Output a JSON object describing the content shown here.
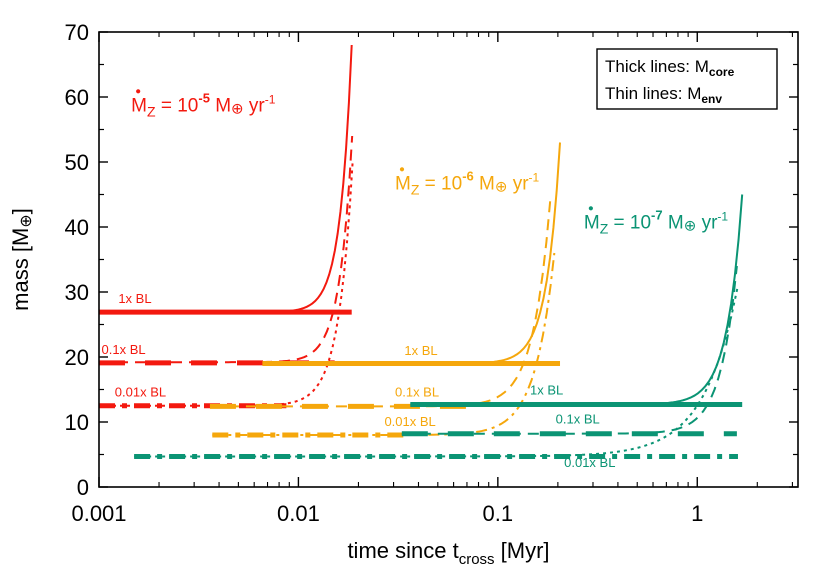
{
  "chart_data": {
    "type": "line",
    "xscale": "log",
    "xlim": [
      0.001,
      3.2
    ],
    "ylim": [
      0,
      70
    ],
    "xlabel": {
      "main": "time since t",
      "sub": "cross",
      "unit": " [Myr]"
    },
    "ylabel": {
      "main": "mass  [M",
      "sym": "⊕",
      "end": "]"
    },
    "xticks": [
      {
        "value": 0.001,
        "label": "0.001"
      },
      {
        "value": 0.01,
        "label": "0.01"
      },
      {
        "value": 0.1,
        "label": "0.1"
      },
      {
        "value": 1,
        "label": "1"
      }
    ],
    "yticks": [
      {
        "value": 0,
        "label": "0"
      },
      {
        "value": 10,
        "label": "10"
      },
      {
        "value": 20,
        "label": "20"
      },
      {
        "value": 30,
        "label": "30"
      },
      {
        "value": 40,
        "label": "40"
      },
      {
        "value": 50,
        "label": "50"
      },
      {
        "value": 60,
        "label": "60"
      },
      {
        "value": 70,
        "label": "70"
      }
    ],
    "legend": {
      "position": "top-right",
      "line1": {
        "text": "Thick lines: M",
        "sub": "core"
      },
      "line2": {
        "text": "Thin lines: M",
        "sub": "env"
      }
    },
    "colors": {
      "red": "#f3190f",
      "orange": "#f5a70c",
      "green": "#0b9474"
    },
    "groups": [
      {
        "name": "red",
        "color": "#f3190f",
        "label": {
          "pre": "M",
          "sub": "Z",
          "mid": " = 10",
          "exp": "-5",
          "post": " M",
          "sym": "⊕",
          "end": " yr",
          "exp2": "-1"
        },
        "label_at": [
          0.00145,
          57.8
        ],
        "envelopes": [
          {
            "name": "1x BL",
            "dash": "solid",
            "t_start": 0.001,
            "t_end": 0.0185,
            "m_start": 26.9,
            "m_end": 68,
            "curv": 22
          },
          {
            "name": "0.1x BL",
            "dash": "dashed",
            "t_start": 0.001,
            "t_end": 0.0186,
            "m_start": 19.2,
            "m_end": 54,
            "curv": 20
          },
          {
            "name": "0.01x BL",
            "dash": "dotted",
            "t_start": 0.001,
            "t_end": 0.0187,
            "m_start": 12.5,
            "m_end": 50,
            "curv": 18
          }
        ],
        "cores": [
          {
            "name": "1x BL",
            "dash": "solid",
            "t_start": 0.001,
            "t_end": 0.0185,
            "m": 26.9
          },
          {
            "name": "0.1x BL",
            "dash": "dashed",
            "t_start": 0.001,
            "t_end": 0.0152,
            "m": 19.1
          },
          {
            "name": "0.01x BL",
            "dash": "dashdot",
            "t_start": 0.001,
            "t_end": 0.0087,
            "m": 12.5
          }
        ],
        "bl_labels": [
          {
            "text": "1x BL",
            "t": 0.00125,
            "m": 28.3
          },
          {
            "text": "0.1x BL",
            "t": 0.00103,
            "m": 20.5
          },
          {
            "text": "0.01x BL",
            "t": 0.0012,
            "m": 13.9
          }
        ]
      },
      {
        "name": "orange",
        "color": "#f5a70c",
        "label": {
          "pre": "M",
          "sub": "Z",
          "mid": " = 10",
          "exp": "-6",
          "post": " M",
          "sym": "⊕",
          "end": " yr",
          "exp2": "-1"
        },
        "label_at": [
          0.0305,
          45.8
        ],
        "envelopes": [
          {
            "name": "1x BL",
            "dash": "solid",
            "t_start": 0.0066,
            "t_end": 0.205,
            "m_start": 19.0,
            "m_end": 53,
            "curv": 22
          },
          {
            "name": "0.1x BL",
            "dash": "dashed",
            "t_start": 0.0036,
            "t_end": 0.183,
            "m_start": 12.4,
            "m_end": 44,
            "curv": 20
          },
          {
            "name": "0.01x BL",
            "dash": "dashdot",
            "t_start": 0.0037,
            "t_end": 0.192,
            "m_start": 8.0,
            "m_end": 36,
            "curv": 18
          }
        ],
        "cores": [
          {
            "name": "1x BL",
            "dash": "solid",
            "t_start": 0.0066,
            "t_end": 0.205,
            "m": 19.0
          },
          {
            "name": "0.1x BL",
            "dash": "dashed",
            "t_start": 0.0036,
            "t_end": 0.0825,
            "m": 12.4
          },
          {
            "name": "0.01x BL",
            "dash": "dashdot",
            "t_start": 0.0037,
            "t_end": 0.034,
            "m": 8.0
          }
        ],
        "bl_labels": [
          {
            "text": "1x BL",
            "t": 0.034,
            "m": 20.3
          },
          {
            "text": "0.1x BL",
            "t": 0.0305,
            "m": 13.9
          },
          {
            "text": "0.01x BL",
            "t": 0.027,
            "m": 9.4
          }
        ]
      },
      {
        "name": "green",
        "color": "#0b9474",
        "label": {
          "pre": "M",
          "sub": "Z",
          "mid": " = 10",
          "exp": "-7",
          "post": " M",
          "sym": "⊕",
          "end": " yr",
          "exp2": "-1"
        },
        "label_at": [
          0.27,
          39.8
        ],
        "envelopes": [
          {
            "name": "1x BL",
            "dash": "solid",
            "t_start": 0.0364,
            "t_end": 1.68,
            "m_start": 12.7,
            "m_end": 45,
            "curv": 22
          },
          {
            "name": "0.1x BL",
            "dash": "dashed",
            "t_start": 0.033,
            "t_end": 1.58,
            "m_start": 8.2,
            "m_end": 34,
            "curv": 20
          },
          {
            "name": "0.01x BL",
            "dash": "dotted",
            "t_start": 0.0015,
            "t_end": 1.6,
            "m_start": 4.7,
            "m_end": 31,
            "curv": 18
          }
        ],
        "cores": [
          {
            "name": "1x BL",
            "dash": "solid",
            "t_start": 0.0364,
            "t_end": 1.68,
            "m": 12.7
          },
          {
            "name": "0.1x BL",
            "dash": "dashed",
            "t_start": 0.033,
            "t_end": 1.58,
            "m": 8.2
          },
          {
            "name": "0.01x BL",
            "dash": "dashdot",
            "t_start": 0.0015,
            "t_end": 1.6,
            "m": 4.7
          }
        ],
        "bl_labels": [
          {
            "text": "1x BL",
            "t": 0.145,
            "m": 14.2
          },
          {
            "text": "0.1x BL",
            "t": 0.195,
            "m": 9.8
          },
          {
            "text": "0.01x BL",
            "t": 0.215,
            "m": 3.1
          }
        ]
      }
    ]
  }
}
